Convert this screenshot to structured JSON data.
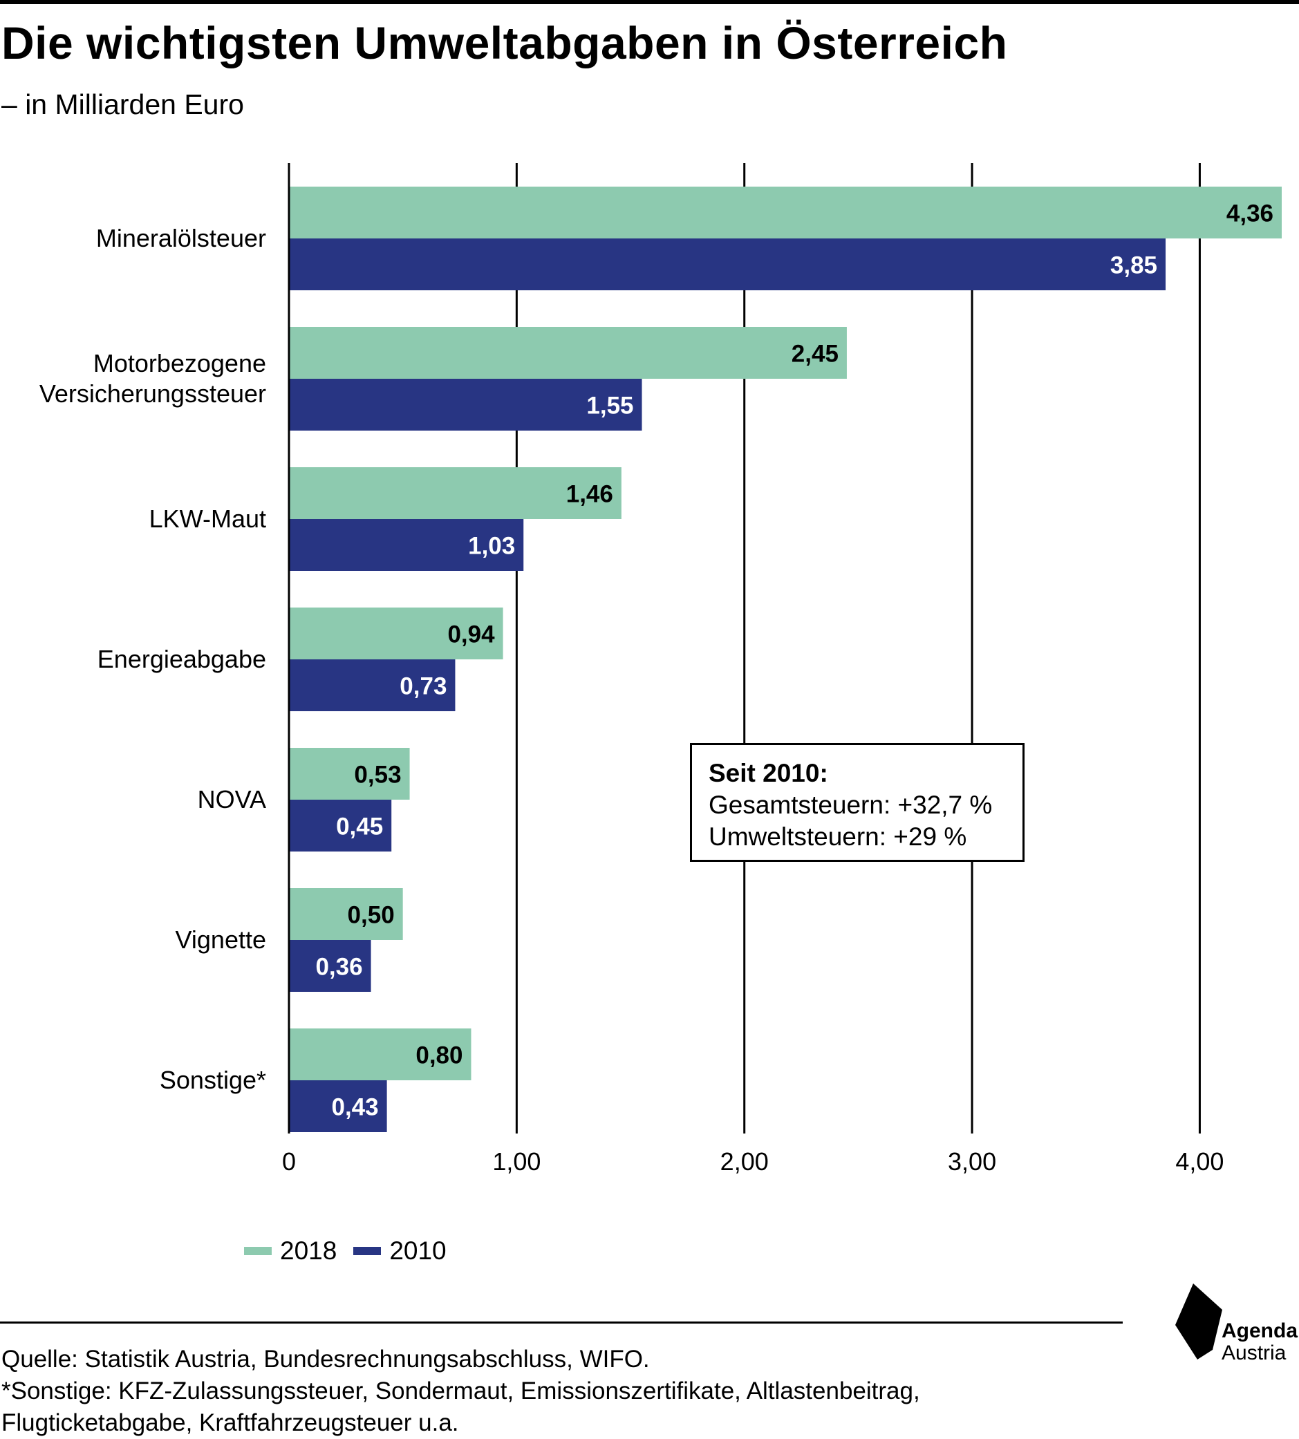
{
  "title": "Die wichtigsten Umweltabgaben in Österreich",
  "subtitle": "– in Milliarden Euro",
  "colors": {
    "series_2018": "#8dcaaf",
    "series_2010": "#283583",
    "label_on_2018": "#000000",
    "label_on_2010": "#ffffff"
  },
  "chart_data": {
    "type": "bar",
    "orientation": "horizontal",
    "categories": [
      "Mineralölsteuer",
      "Motorbezogene Versicherungssteuer",
      "LKW-Maut",
      "Energieabgabe",
      "NOVA",
      "Vignette",
      "Sonstige*"
    ],
    "category_lines": [
      [
        "Mineralölsteuer"
      ],
      [
        "Motorbezogene",
        "Versicherungssteuer"
      ],
      [
        "LKW-Maut"
      ],
      [
        "Energieabgabe"
      ],
      [
        "NOVA"
      ],
      [
        "Vignette"
      ],
      [
        "Sonstige*"
      ]
    ],
    "series": [
      {
        "name": "2018",
        "values": [
          4.36,
          2.45,
          1.46,
          0.94,
          0.53,
          0.5,
          0.8
        ],
        "labels": [
          "4,36",
          "2,45",
          "1,46",
          "0,94",
          "0,53",
          "0,50",
          "0,80"
        ]
      },
      {
        "name": "2010",
        "values": [
          3.85,
          1.55,
          1.03,
          0.73,
          0.45,
          0.36,
          0.43
        ],
        "labels": [
          "3,85",
          "1,55",
          "1,03",
          "0,73",
          "0,45",
          "0,36",
          "0,43"
        ]
      }
    ],
    "xlim": [
      0,
      4.36
    ],
    "xticks": [
      0,
      1,
      2,
      3,
      4
    ],
    "xtick_labels": [
      "0",
      "1,00",
      "2,00",
      "3,00",
      "4,00"
    ],
    "grid": "vertical",
    "legend": "bottom-left"
  },
  "legend": [
    {
      "label": "2018",
      "color": "#8dcaaf"
    },
    {
      "label": "2010",
      "color": "#283583"
    }
  ],
  "callout": {
    "heading": "Seit 2010:",
    "line1": "Gesamtsteuern: +32,7 %",
    "line2": "Umweltsteuern: +29 %"
  },
  "footer": {
    "source": "Quelle: Statistik Austria, Bundesrechnungsabschluss, WIFO.",
    "note_line1": "*Sonstige: KFZ-Zulassungssteuer, Sondermaut, Emissionszertifikate, Altlastenbeitrag,",
    "note_line2": "Flugticketabgabe, Kraftfahrzeugsteuer u.a."
  },
  "logo": {
    "line1": "Agenda",
    "line2": "Austria"
  }
}
